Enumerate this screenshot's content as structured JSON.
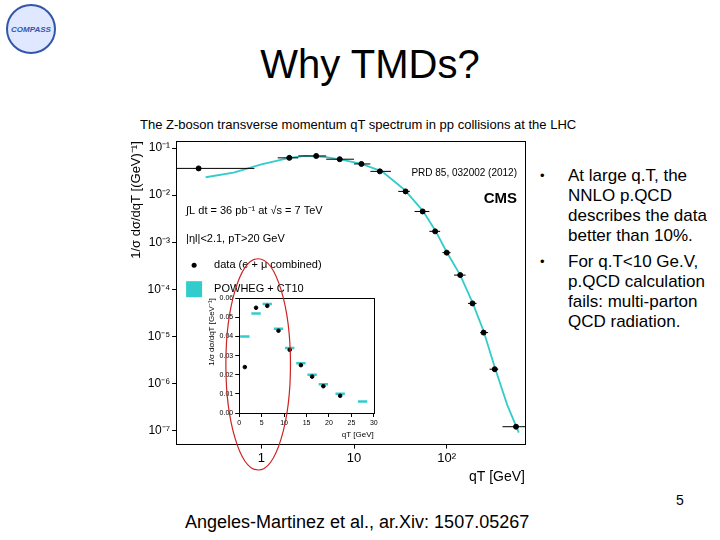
{
  "slide": {
    "logo": "COMPASS",
    "title": "Why TMDs?",
    "subtitle": "The Z-boson transverse momentum qT spectrum in pp collisions at the LHC",
    "bullets": [
      "At large q.T, the NNLO p.QCD describes the data better than 10%.",
      "For q.T<10 Ge.V, p.QCD calculation fails: multi-parton QCD radiation."
    ],
    "page": 5,
    "citation": "Angeles-Martinez et al., ar.Xiv: 1507.05267"
  },
  "chart_data": [
    {
      "type": "scatter",
      "x_label": "qT [GeV]",
      "y_label": "1/σ dσ/dqT [(GeV)⁻¹]",
      "log": true,
      "grid": false,
      "legend": "top-left",
      "xlim": [
        0.12,
        700
      ],
      "xticks": [
        1,
        10,
        {
          "value": 100,
          "label": "10²"
        }
      ],
      "ylim": [
        5e-08,
        0.14
      ],
      "yticks": [
        {
          "value": 0.1,
          "label": "10⁻¹"
        },
        {
          "value": 0.01,
          "label": "10⁻²"
        },
        {
          "value": 0.001,
          "label": "10⁻³"
        },
        {
          "value": 0.0001,
          "label": "10⁻⁴"
        },
        {
          "value": 1e-05,
          "label": "10⁻⁵"
        },
        {
          "value": 1e-06,
          "label": "10⁻⁶"
        },
        {
          "value": 1e-07,
          "label": "10⁻⁷"
        }
      ],
      "annotations": [
        "CMS",
        "PRD 85, 032002 (2012)",
        "∫L dt = 36 pb⁻¹ at √s = 7 TeV",
        "|ηl|<2.1, pT>20 GeV"
      ],
      "series": [
        {
          "name": "data (e + μ combined)",
          "color": "#000000",
          "marker": "circle",
          "x": [
            0.21,
            2.0,
            3.9,
            7.0,
            12,
            19,
            36,
            55,
            75,
            100,
            140,
            190,
            250,
            330,
            560
          ],
          "values": [
            0.037,
            0.062,
            0.068,
            0.058,
            0.046,
            0.032,
            0.012,
            0.0045,
            0.0017,
            0.0006,
            0.0002,
            5e-05,
            1.2e-05,
            2e-06,
            1.2e-07
          ],
          "x_low": [
            0.12,
            1.5,
            2.5,
            5,
            10,
            15,
            30,
            45,
            65,
            90,
            120,
            170,
            230,
            290,
            400
          ],
          "x_high": [
            0.84,
            2.5,
            5,
            10,
            15,
            25,
            40,
            65,
            85,
            110,
            160,
            210,
            280,
            360,
            700
          ]
        },
        {
          "name": "POWHEG + CT10",
          "type": "line",
          "color": "#33cccc",
          "x": [
            0.25,
            0.5,
            1,
            2,
            3,
            5,
            8,
            12,
            20,
            35,
            55,
            75,
            100,
            140,
            190,
            250,
            330,
            450,
            600
          ],
          "values": [
            0.024,
            0.03,
            0.045,
            0.062,
            0.068,
            0.064,
            0.055,
            0.046,
            0.032,
            0.013,
            0.0047,
            0.0018,
            0.00062,
            0.0002,
            5.2e-05,
            1.3e-05,
            2.2e-06,
            3.5e-07,
            9e-08
          ]
        }
      ]
    },
    {
      "type": "scatter",
      "x_label": "qT [GeV]",
      "y_label": "1/σ dσ/dqT [GeV⁻¹]",
      "grid": false,
      "xlim": [
        0,
        30
      ],
      "xticks": [
        0,
        5,
        10,
        15,
        20,
        25,
        30
      ],
      "ylim": [
        0,
        0.06
      ],
      "yticks": [
        {
          "value": 0,
          "label": "0.00"
        },
        {
          "value": 0.01,
          "label": "0.01"
        },
        {
          "value": 0.02,
          "label": "0.02"
        },
        {
          "value": 0.03,
          "label": "0.03"
        },
        {
          "value": 0.04,
          "label": "0.04"
        },
        {
          "value": 0.05,
          "label": "0.05"
        },
        {
          "value": 0.06,
          "label": "0.06"
        }
      ],
      "series": [
        {
          "color": "#000000",
          "marker": "circle",
          "x": [
            1.25,
            3.75,
            6.25,
            8.75,
            11.25,
            13.75,
            16.25,
            18.75,
            22.5
          ],
          "values": [
            0.024,
            0.055,
            0.056,
            0.043,
            0.033,
            0.025,
            0.019,
            0.014,
            0.009
          ]
        },
        {
          "color": "#33cccc",
          "marker": "dash",
          "x": [
            1.25,
            3.75,
            6.25,
            8.75,
            11.25,
            13.75,
            16.25,
            18.75,
            22.5,
            27.5
          ],
          "values": [
            0.04,
            0.052,
            0.057,
            0.044,
            0.034,
            0.026,
            0.02,
            0.015,
            0.01,
            0.006
          ]
        }
      ]
    }
  ]
}
